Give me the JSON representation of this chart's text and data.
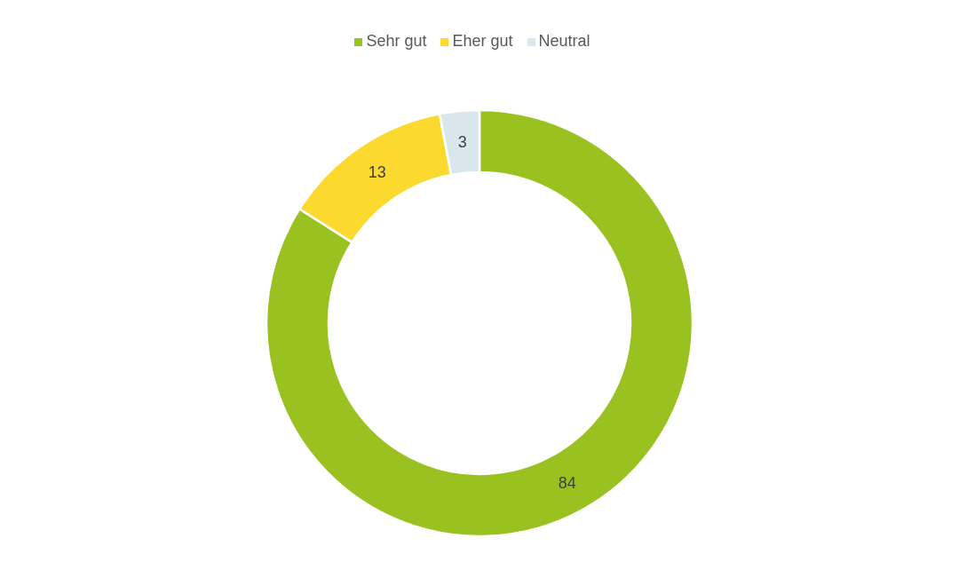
{
  "chart_data": {
    "type": "donut",
    "categories": [
      "Sehr gut",
      "Eher gut",
      "Neutral"
    ],
    "values": [
      84,
      13,
      3
    ],
    "colors": [
      "#99c221",
      "#fcd92f",
      "#d9e6ec"
    ],
    "data_labels": true,
    "legend": "top"
  }
}
